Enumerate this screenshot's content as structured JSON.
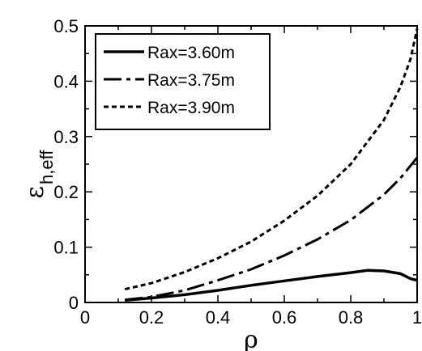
{
  "chart_data": {
    "type": "line",
    "xlabel": "ρ",
    "ylabel_main": "ε",
    "ylabel_sub": "h,eff",
    "xlim": [
      0,
      1
    ],
    "ylim": [
      0,
      0.5
    ],
    "xticks": [
      0,
      0.2,
      0.4,
      0.6,
      0.8,
      1
    ],
    "xtick_labels": [
      "0",
      "0.2",
      "0.4",
      "0.6",
      "0.8",
      "1"
    ],
    "yticks": [
      0,
      0.1,
      0.2,
      0.3,
      0.4,
      0.5
    ],
    "ytick_labels": [
      "0",
      "0.1",
      "0.2",
      "0.3",
      "0.4",
      "0.5"
    ],
    "grid": false,
    "legend_position": "top-left",
    "series": [
      {
        "name": "Rax=3.60m",
        "style": "solid",
        "x": [
          0.12,
          0.2,
          0.3,
          0.4,
          0.5,
          0.6,
          0.7,
          0.8,
          0.85,
          0.9,
          0.95,
          0.98,
          1.0
        ],
        "y": [
          0.004,
          0.008,
          0.014,
          0.022,
          0.031,
          0.039,
          0.047,
          0.054,
          0.058,
          0.057,
          0.052,
          0.043,
          0.04
        ]
      },
      {
        "name": "Rax=3.75m",
        "style": "dashdot",
        "x": [
          0.12,
          0.2,
          0.3,
          0.4,
          0.5,
          0.6,
          0.7,
          0.8,
          0.9,
          0.95,
          1.0
        ],
        "y": [
          0.005,
          0.01,
          0.022,
          0.04,
          0.06,
          0.085,
          0.114,
          0.149,
          0.195,
          0.225,
          0.262
        ]
      },
      {
        "name": "Rax=3.90m",
        "style": "dashed",
        "x": [
          0.12,
          0.2,
          0.3,
          0.4,
          0.5,
          0.6,
          0.7,
          0.8,
          0.9,
          0.95,
          0.98,
          1.0
        ],
        "y": [
          0.024,
          0.035,
          0.055,
          0.08,
          0.11,
          0.148,
          0.193,
          0.25,
          0.33,
          0.39,
          0.44,
          0.495
        ]
      }
    ]
  }
}
